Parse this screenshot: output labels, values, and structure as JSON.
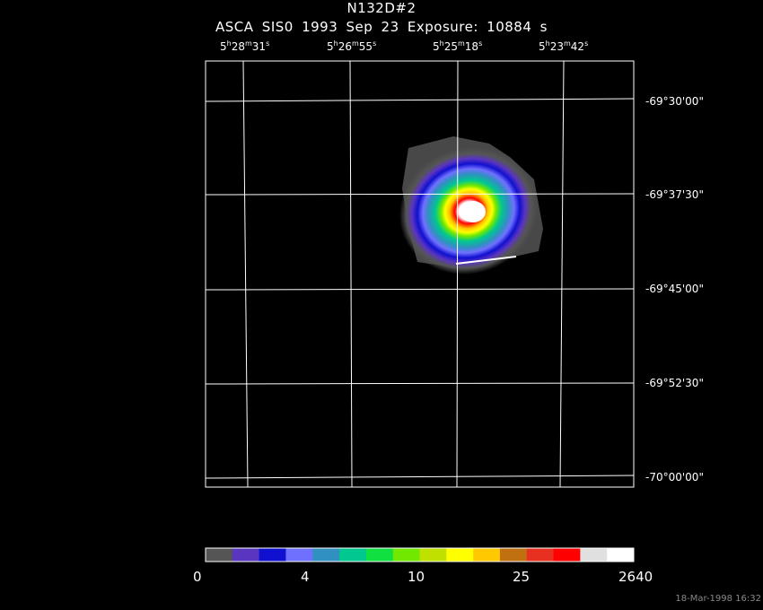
{
  "title": "N132D#2",
  "subtitle": "ASCA SIS0   1993 Sep 23    Exposure: 10884 s",
  "ra_labels": [
    {
      "h": "5",
      "m": "28",
      "s": "31"
    },
    {
      "h": "5",
      "m": "26",
      "s": "55"
    },
    {
      "h": "5",
      "m": "25",
      "s": "18"
    },
    {
      "h": "5",
      "m": "23",
      "s": "42"
    }
  ],
  "dec_labels": [
    "-69°30'00\"",
    "-69°37'30\"",
    "-69°45'00\"",
    "-69°52'30\"",
    "-70°00'00\""
  ],
  "colorbar": {
    "labels": [
      "0",
      "4",
      "10",
      "25",
      "2640"
    ],
    "colors": [
      "#555555",
      "#5a35c0",
      "#1010d0",
      "#7070ff",
      "#3090c0",
      "#00c890",
      "#10e040",
      "#70e800",
      "#c0e000",
      "#ffff00",
      "#ffc800",
      "#c07010",
      "#e83020",
      "#ff0000",
      "#e0e0e0",
      "#ffffff"
    ]
  },
  "timestamp": "18-Mar-1998 16:32"
}
